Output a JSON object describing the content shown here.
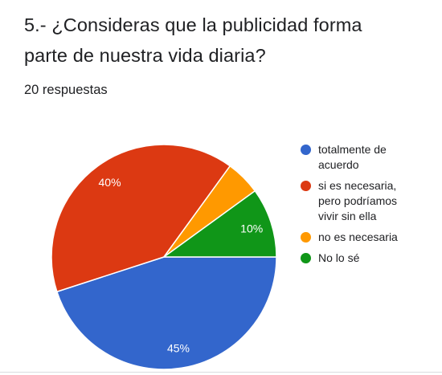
{
  "question": {
    "title": "5.- ¿Consideras que la publicidad forma parte de nuestra vida diaria?",
    "response_count": "20 respuestas"
  },
  "colors": {
    "slice_label": "#ffffff",
    "separator": "#ffffff",
    "background": "#ffffff"
  },
  "chart_data": {
    "type": "pie",
    "title": "5.- ¿Consideras que la publicidad forma parte de nuestra vida diaria?",
    "legend_position": "right",
    "slices": [
      {
        "label": "totalmente de acuerdo",
        "value": 45,
        "display": "45%",
        "color": "#3366cc"
      },
      {
        "label": "si es necesaria, pero podríamos vivir sin ella",
        "value": 40,
        "display": "40%",
        "color": "#dc3912"
      },
      {
        "label": "no es necesaria",
        "value": 5,
        "display": "",
        "color": "#ff9900"
      },
      {
        "label": "No lo sé",
        "value": 10,
        "display": "10%",
        "color": "#109618"
      }
    ]
  }
}
